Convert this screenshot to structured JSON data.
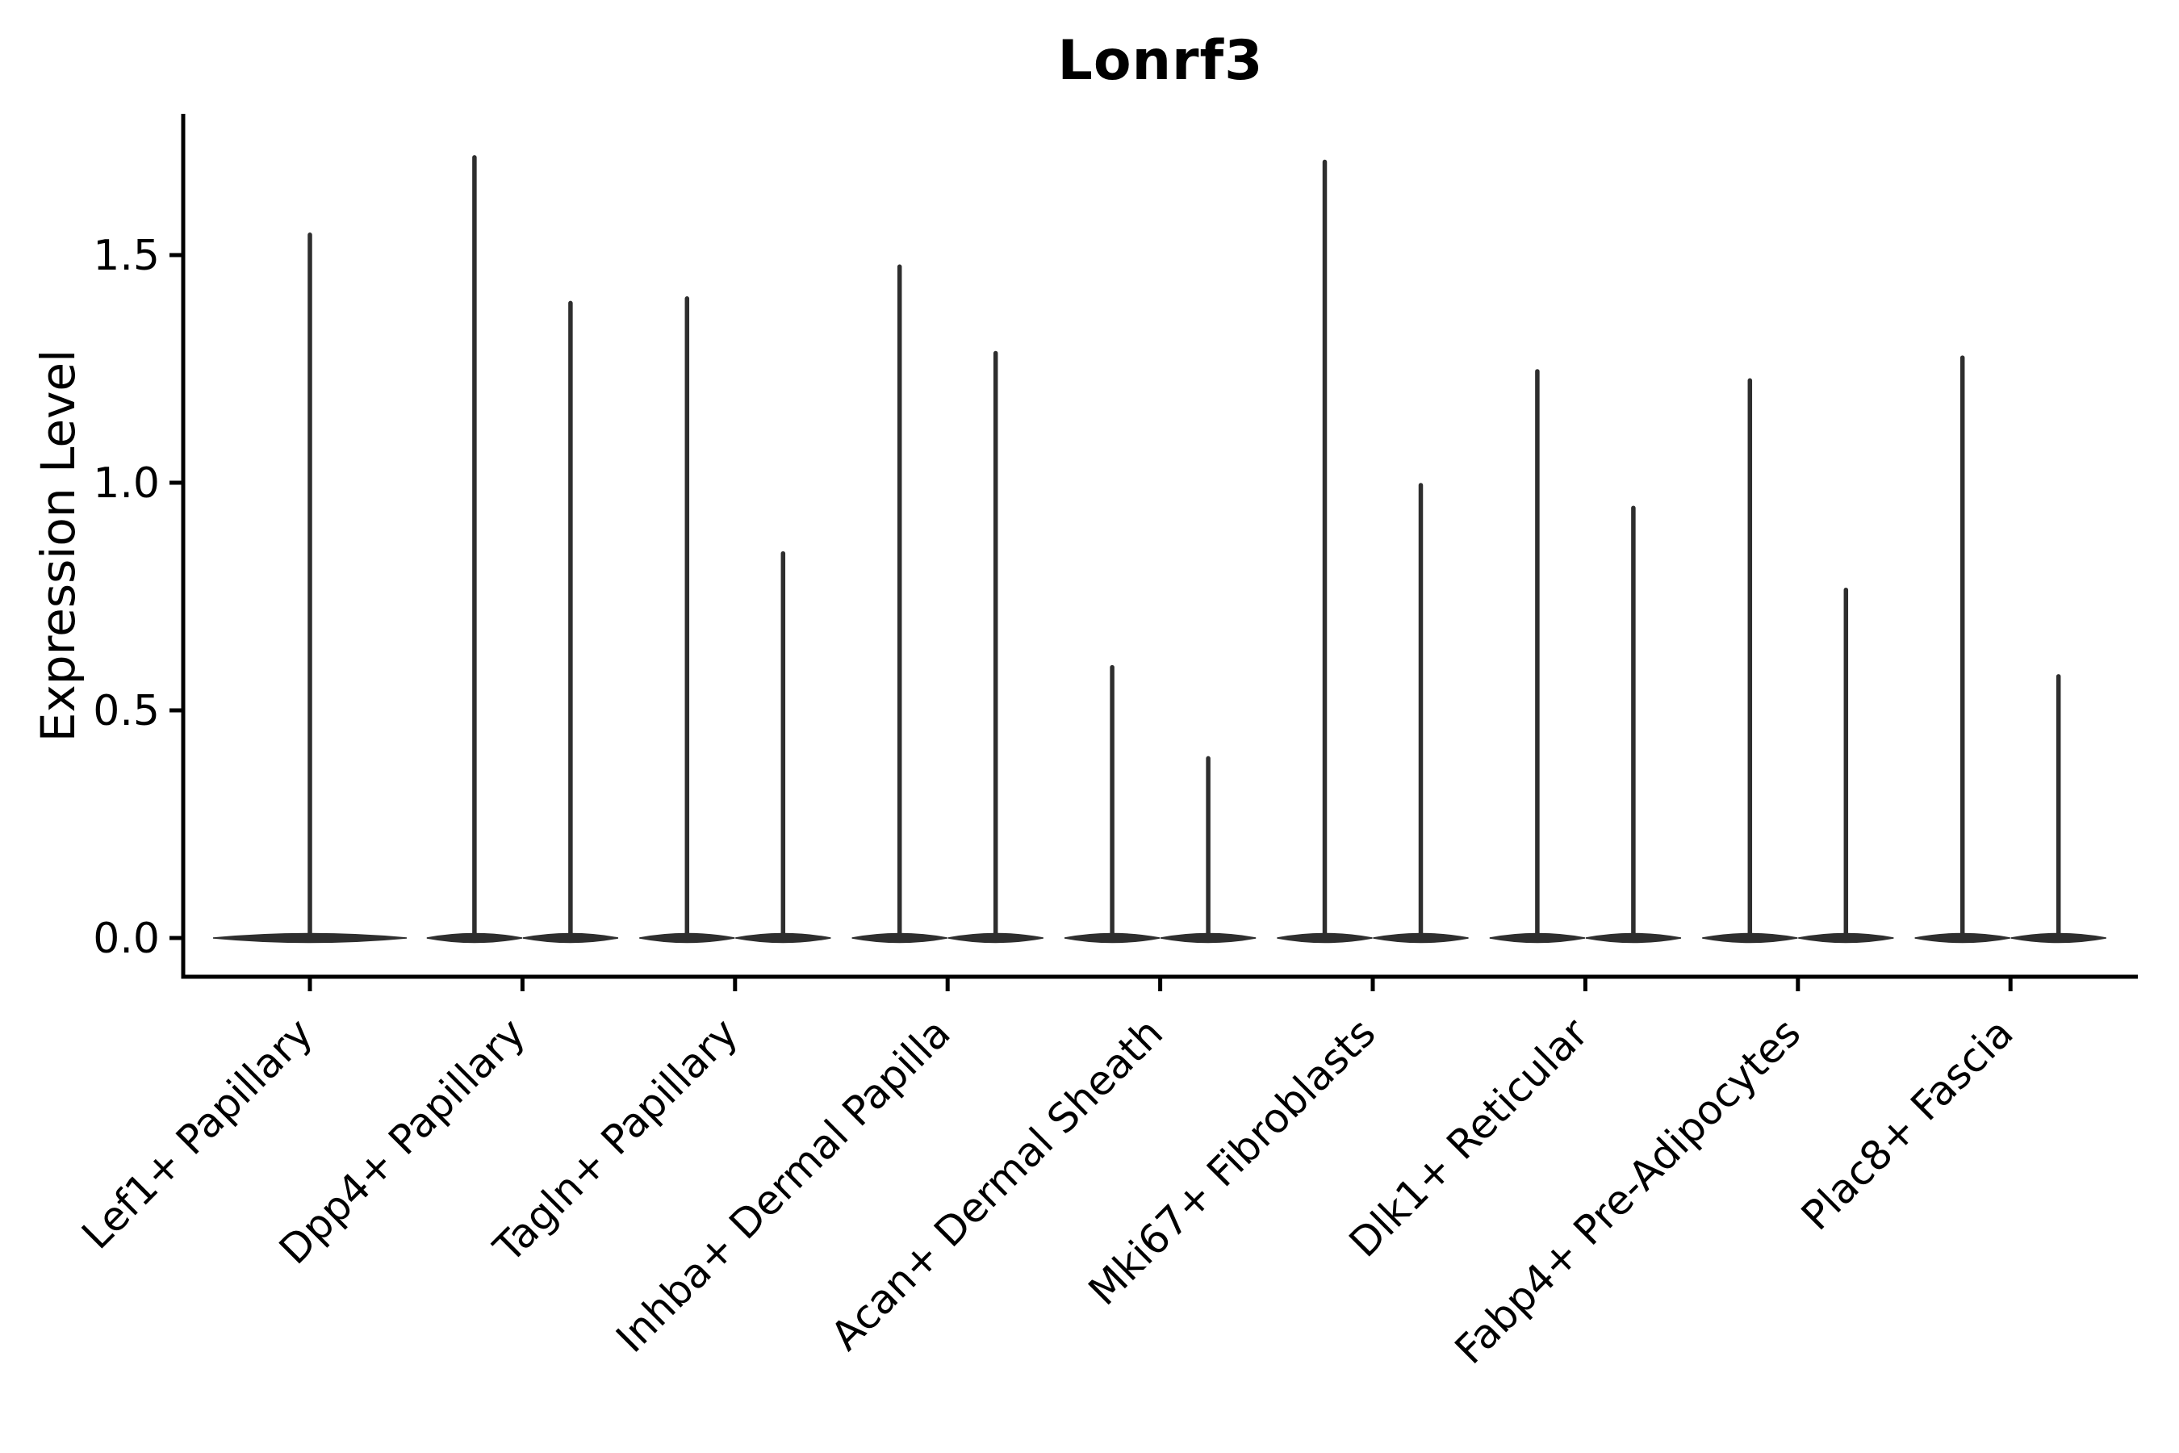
{
  "chart_data": {
    "type": "violin",
    "title": "Lonrf3",
    "ylabel": "Expression Level",
    "xlabel": "",
    "legend": "none",
    "grid": false,
    "y_axis": {
      "range": [
        -0.085,
        1.81
      ],
      "ticks": [
        {
          "label": "0.0",
          "value": 0.0
        },
        {
          "label": "0.5",
          "value": 0.5
        },
        {
          "label": "1.0",
          "value": 1.0
        },
        {
          "label": "1.5",
          "value": 1.5
        }
      ]
    },
    "baseline_value": 0.0,
    "categories": [
      {
        "label": "Lef1+ Papillary",
        "violin_maxima": [
          1.55
        ]
      },
      {
        "label": "Dpp4+ Papillary",
        "violin_maxima": [
          1.72,
          1.4
        ]
      },
      {
        "label": "Tagln+ Papillary",
        "violin_maxima": [
          1.41,
          0.85
        ]
      },
      {
        "label": "Inhba+ Dermal Papilla",
        "violin_maxima": [
          1.48,
          1.29
        ]
      },
      {
        "label": "Acan+ Dermal Sheath",
        "violin_maxima": [
          0.6,
          0.4
        ]
      },
      {
        "label": "Mki67+ Fibroblasts",
        "violin_maxima": [
          1.71,
          1.0
        ]
      },
      {
        "label": "Dlk1+ Reticular",
        "violin_maxima": [
          1.25,
          0.95
        ]
      },
      {
        "label": "Fabp4+ Pre-Adipocytes",
        "violin_maxima": [
          1.23,
          0.77
        ]
      },
      {
        "label": "Plac8+ Fascia",
        "violin_maxima": [
          1.28,
          0.58
        ]
      }
    ]
  },
  "colors": {
    "violin": "#2e2e2e",
    "axis": "#000000",
    "text": "#000000",
    "background": "#ffffff"
  }
}
